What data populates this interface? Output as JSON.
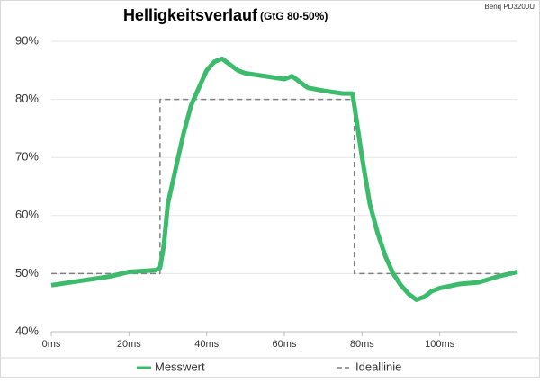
{
  "chart_data": {
    "type": "line",
    "title": "Helligkeitsverlauf",
    "subtitle": "(GtG 80-50%)",
    "note": "Benq PD3200U",
    "xlim": [
      0,
      120
    ],
    "xticks": [
      {
        "value": 0,
        "label": "0ms"
      },
      {
        "value": 20,
        "label": "20ms"
      },
      {
        "value": 40,
        "label": "40ms"
      },
      {
        "value": 60,
        "label": "60ms"
      },
      {
        "value": 80,
        "label": "80ms"
      },
      {
        "value": 100,
        "label": "100ms"
      }
    ],
    "ylim": [
      40,
      90
    ],
    "yticks": [
      {
        "value": 40,
        "label": "40%"
      },
      {
        "value": 50,
        "label": "50%"
      },
      {
        "value": 60,
        "label": "60%"
      },
      {
        "value": 70,
        "label": "70%"
      },
      {
        "value": 80,
        "label": "80%"
      },
      {
        "value": 90,
        "label": "90%"
      }
    ],
    "grid": true,
    "legend": "bottom",
    "series": [
      {
        "name": "Messwert",
        "color": "#3dbb6c",
        "dashed": false,
        "x": [
          0,
          5,
          10,
          15,
          20,
          25,
          27,
          28,
          29,
          30,
          32,
          34,
          36,
          38,
          40,
          42,
          44,
          46,
          48,
          50,
          55,
          60,
          62,
          64,
          66,
          70,
          75,
          77.5,
          78,
          80,
          82,
          84,
          86,
          88,
          90,
          92,
          94,
          96,
          98,
          100,
          105,
          110,
          115,
          120
        ],
        "values": [
          48,
          48.5,
          49,
          49.5,
          50.3,
          50.5,
          50.6,
          51,
          55,
          62,
          68,
          74,
          79,
          82,
          85,
          86.5,
          87,
          86,
          85,
          84.5,
          84,
          83.5,
          84,
          83,
          82,
          81.5,
          81,
          81,
          79,
          70,
          62,
          57,
          53,
          50,
          48,
          46.5,
          45.5,
          46,
          47,
          47.5,
          48.2,
          48.5,
          49.5,
          50.3
        ]
      },
      {
        "name": "Ideallinie",
        "color": "#7f7f7f",
        "dashed": true,
        "x": [
          0,
          28,
          28,
          78,
          78,
          120
        ],
        "values": [
          50,
          50,
          80,
          80,
          50,
          50
        ]
      }
    ]
  }
}
